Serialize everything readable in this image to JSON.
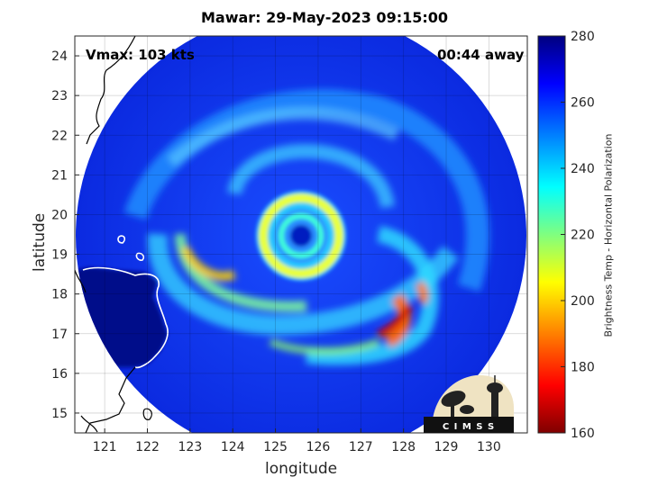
{
  "title": "Mawar: 29-May-2023 09:15:00",
  "vmax_label": "Vmax: 103 kts",
  "time_away_label": "00:44 away",
  "x_axis": {
    "label": "longitude",
    "ticks": [
      121,
      122,
      123,
      124,
      125,
      126,
      127,
      128,
      129,
      130
    ],
    "range": [
      120.3,
      130.9
    ]
  },
  "y_axis": {
    "label": "latitude",
    "ticks": [
      15,
      16,
      17,
      18,
      19,
      20,
      21,
      22,
      23,
      24
    ],
    "range": [
      14.5,
      24.5
    ]
  },
  "colorbar": {
    "label": "Brightness Temp - Horizontal Polarization",
    "ticks": [
      160,
      180,
      200,
      220,
      240,
      260,
      280
    ],
    "range": [
      160,
      280
    ],
    "colors": [
      "#7f0000",
      "#ff0000",
      "#ffff00",
      "#00ffff",
      "#0000ff",
      "#00007f"
    ]
  },
  "storm_center": {
    "lon": 125.6,
    "lat": 19.4
  },
  "logo_text": "C I M S S",
  "grid": true
}
